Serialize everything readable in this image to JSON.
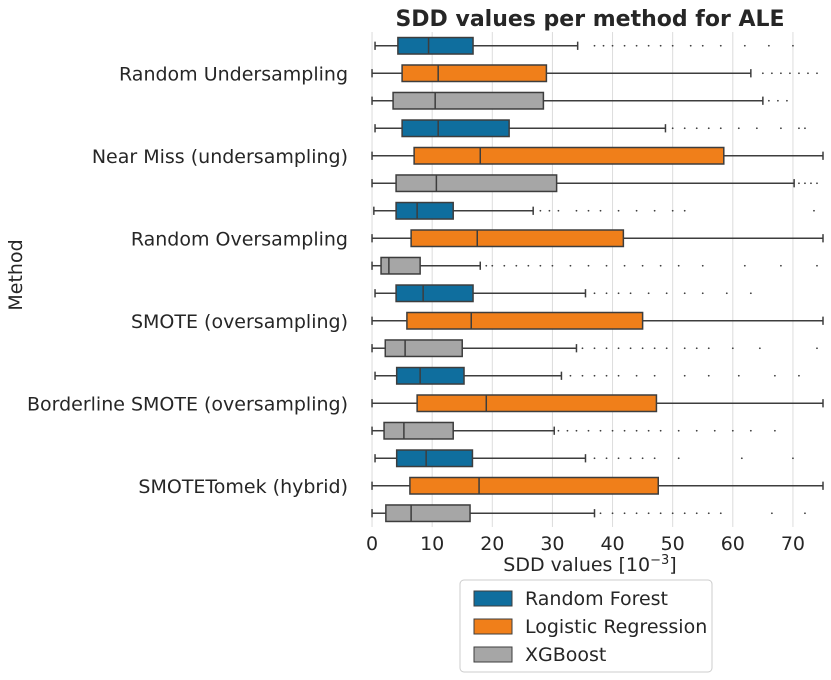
{
  "chart_data": {
    "type": "boxplot",
    "orientation": "horizontal",
    "title": "SDD values per method for ALE",
    "xlabel": "SDD values [10",
    "xlabel_exponent": "−3",
    "xlabel_suffix": "]",
    "ylabel": "Method",
    "xlim": [
      -2.5,
      75
    ],
    "xticks": [
      0,
      10,
      20,
      30,
      40,
      50,
      60,
      70
    ],
    "grid": "vertical",
    "legend_position": "below",
    "categories": [
      "Random Undersampling",
      "Near Miss (undersampling)",
      "Random Oversampling",
      "SMOTE (oversampling)",
      "Borderline SMOTE (oversampling)",
      "SMOTETomek (hybrid)"
    ],
    "series": [
      {
        "name": "Random Forest",
        "color": "#0f6e9e",
        "boxes": [
          {
            "whislo": 0.5,
            "q1": 4.3,
            "med": 9.4,
            "q3": 16.8,
            "whishi": 34.2,
            "fliers": [
              37,
              38.5,
              40,
              42,
              44,
              46,
              48,
              50,
              53,
              55,
              58,
              62,
              66,
              70
            ]
          },
          {
            "whislo": 0.5,
            "q1": 5.0,
            "med": 11.0,
            "q3": 22.8,
            "whishi": 48.8,
            "fliers": [
              50,
              52,
              54,
              56,
              58,
              61,
              64,
              68,
              71,
              72
            ]
          },
          {
            "whislo": 0.3,
            "q1": 4.0,
            "med": 7.5,
            "q3": 13.5,
            "whishi": 26.8,
            "fliers": [
              28,
              29.5,
              31,
              34,
              36,
              38,
              41,
              44,
              47,
              50,
              52,
              73.5
            ]
          },
          {
            "whislo": 0.5,
            "q1": 4.0,
            "med": 8.5,
            "q3": 16.8,
            "whishi": 35.5,
            "fliers": [
              37,
              39,
              41,
              43,
              46,
              49,
              52,
              55,
              59,
              63
            ]
          },
          {
            "whislo": 0.5,
            "q1": 4.1,
            "med": 8.0,
            "q3": 15.3,
            "whishi": 31.5,
            "fliers": [
              33,
              35,
              37,
              39,
              41,
              44,
              47,
              52,
              56,
              61,
              67,
              71
            ]
          },
          {
            "whislo": 0.5,
            "q1": 4.1,
            "med": 9.0,
            "q3": 16.7,
            "whishi": 35.5,
            "fliers": [
              37,
              39,
              41,
              43,
              45,
              47,
              51,
              61.5,
              70
            ]
          }
        ]
      },
      {
        "name": "Logistic Regression",
        "color": "#f07f1a",
        "boxes": [
          {
            "whislo": 0.0,
            "q1": 5.0,
            "med": 11.0,
            "q3": 29.0,
            "whishi": 63.0,
            "fliers": [
              65,
              66.5,
              68,
              69.5,
              71,
              72.5,
              74
            ]
          },
          {
            "whislo": 0.0,
            "q1": 7.0,
            "med": 18.0,
            "q3": 58.5,
            "whishi": 75.0,
            "fliers": []
          },
          {
            "whislo": 0.0,
            "q1": 6.5,
            "med": 17.5,
            "q3": 41.8,
            "whishi": 75.0,
            "fliers": []
          },
          {
            "whislo": 0.0,
            "q1": 5.8,
            "med": 16.5,
            "q3": 45.0,
            "whishi": 75.0,
            "fliers": []
          },
          {
            "whislo": 0.0,
            "q1": 7.5,
            "med": 19.0,
            "q3": 47.3,
            "whishi": 75.0,
            "fliers": []
          },
          {
            "whislo": 0.0,
            "q1": 6.3,
            "med": 17.8,
            "q3": 47.6,
            "whishi": 75.0,
            "fliers": []
          }
        ]
      },
      {
        "name": "XGBoost",
        "color": "#a6a6a6",
        "boxes": [
          {
            "whislo": 0.0,
            "q1": 3.5,
            "med": 10.5,
            "q3": 28.5,
            "whishi": 65.0,
            "fliers": [
              66,
              67.5,
              69
            ]
          },
          {
            "whislo": 0.0,
            "q1": 4.0,
            "med": 10.7,
            "q3": 30.7,
            "whishi": 70.2,
            "fliers": [
              71,
              72,
              73,
              74
            ]
          },
          {
            "whislo": 0.0,
            "q1": 1.5,
            "med": 2.8,
            "q3": 8.0,
            "whishi": 18.0,
            "fliers": [
              19,
              20,
              22,
              24,
              26,
              28,
              30,
              33,
              36,
              39,
              42,
              45,
              48,
              51,
              55,
              62,
              68,
              74
            ]
          },
          {
            "whislo": 0.0,
            "q1": 2.2,
            "med": 5.5,
            "q3": 15.0,
            "whishi": 34.0,
            "fliers": [
              35,
              37,
              39,
              41,
              43,
              45,
              47,
              49,
              52,
              54,
              56,
              60,
              64.5,
              74
            ]
          },
          {
            "whislo": 0.0,
            "q1": 2.0,
            "med": 5.3,
            "q3": 13.5,
            "whishi": 30.3,
            "fliers": [
              31,
              32.5,
              34,
              36,
              38,
              40,
              42,
              44,
              46,
              48,
              51,
              54,
              57,
              60,
              63,
              67
            ]
          },
          {
            "whislo": 0.0,
            "q1": 2.3,
            "med": 6.5,
            "q3": 16.3,
            "whishi": 37.0,
            "fliers": [
              38,
              40,
              42,
              44,
              46,
              48,
              50,
              52,
              54,
              56,
              58,
              66.5,
              72
            ]
          }
        ]
      }
    ]
  }
}
